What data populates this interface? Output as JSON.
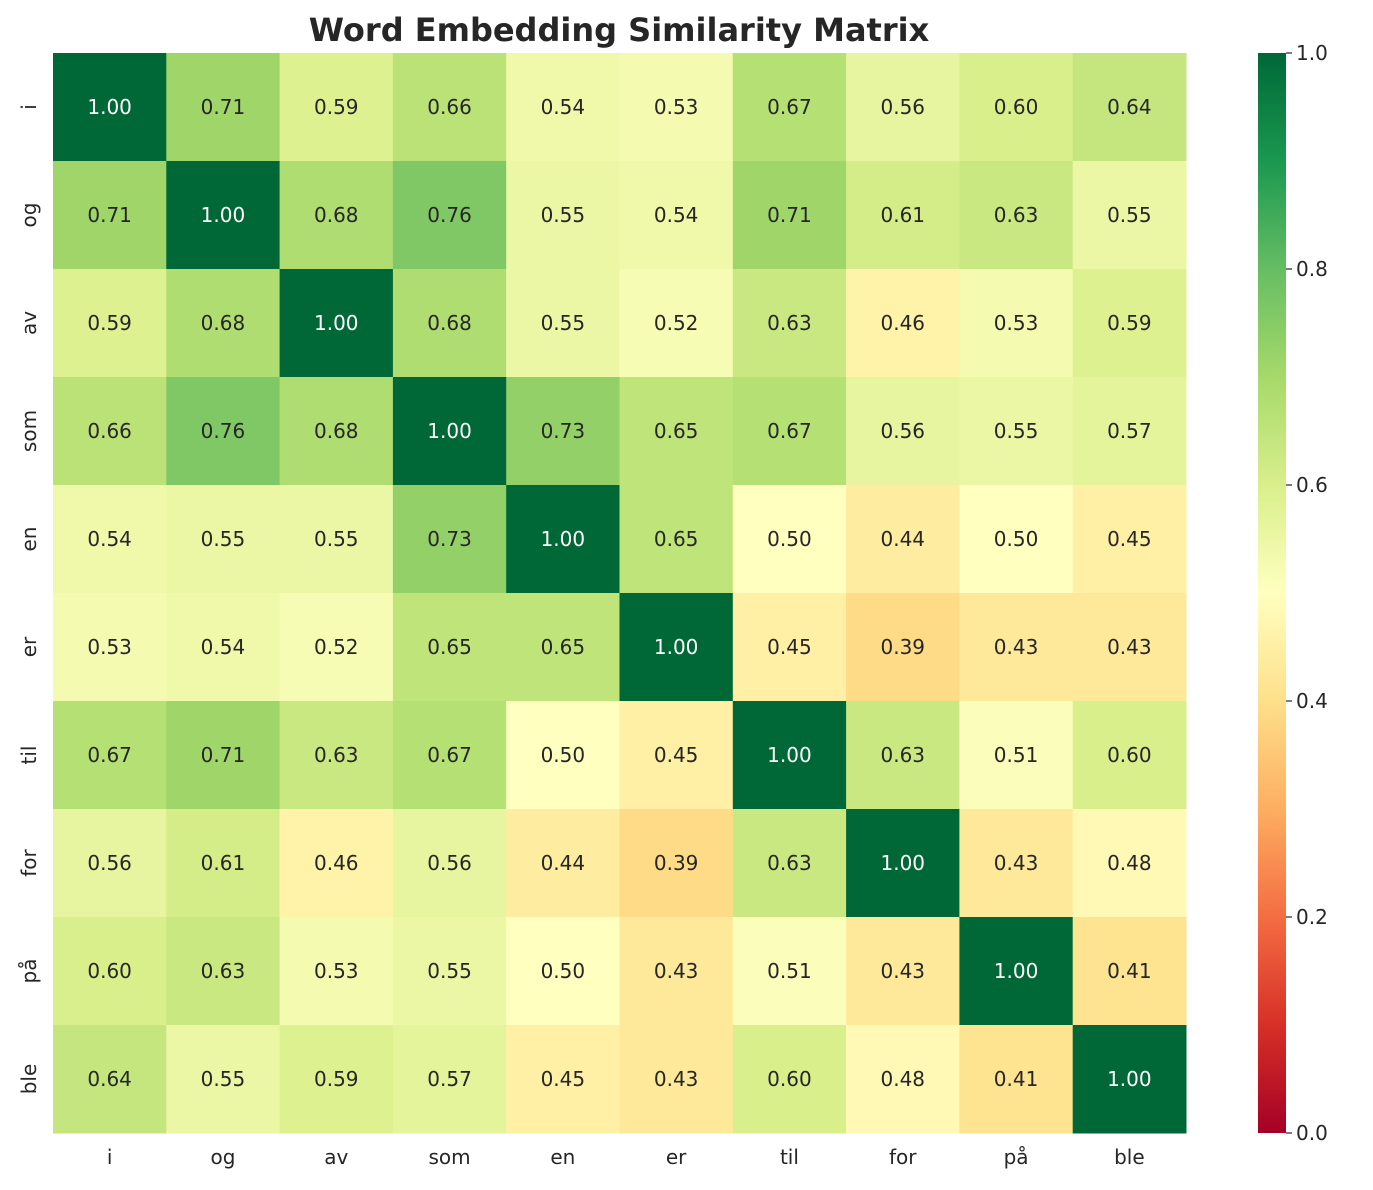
{
  "chart_data": {
    "type": "heatmap",
    "title": "Word Embedding Similarity Matrix",
    "xlabel": "",
    "ylabel": "",
    "x_categories": [
      "i",
      "og",
      "av",
      "som",
      "en",
      "er",
      "til",
      "for",
      "på",
      "ble"
    ],
    "y_categories": [
      "i",
      "og",
      "av",
      "som",
      "en",
      "er",
      "til",
      "for",
      "på",
      "ble"
    ],
    "values": [
      [
        1.0,
        0.71,
        0.59,
        0.66,
        0.54,
        0.53,
        0.67,
        0.56,
        0.6,
        0.64
      ],
      [
        0.71,
        1.0,
        0.68,
        0.76,
        0.55,
        0.54,
        0.71,
        0.61,
        0.63,
        0.55
      ],
      [
        0.59,
        0.68,
        1.0,
        0.68,
        0.55,
        0.52,
        0.63,
        0.46,
        0.53,
        0.59
      ],
      [
        0.66,
        0.76,
        0.68,
        1.0,
        0.73,
        0.65,
        0.67,
        0.56,
        0.55,
        0.57
      ],
      [
        0.54,
        0.55,
        0.55,
        0.73,
        1.0,
        0.65,
        0.5,
        0.44,
        0.5,
        0.45
      ],
      [
        0.53,
        0.54,
        0.52,
        0.65,
        0.65,
        1.0,
        0.45,
        0.39,
        0.43,
        0.43
      ],
      [
        0.67,
        0.71,
        0.63,
        0.67,
        0.5,
        0.45,
        1.0,
        0.63,
        0.51,
        0.6
      ],
      [
        0.56,
        0.61,
        0.46,
        0.56,
        0.44,
        0.39,
        0.63,
        1.0,
        0.43,
        0.48
      ],
      [
        0.6,
        0.63,
        0.53,
        0.55,
        0.5,
        0.43,
        0.51,
        0.43,
        1.0,
        0.41
      ],
      [
        0.64,
        0.55,
        0.59,
        0.57,
        0.45,
        0.43,
        0.6,
        0.48,
        0.41,
        1.0
      ]
    ],
    "value_format": "0.00",
    "colormap": "RdYlGn",
    "vmin": 0.0,
    "vmax": 1.0,
    "colorbar": {
      "ticks": [
        0.0,
        0.2,
        0.4,
        0.6,
        0.8,
        1.0
      ],
      "tick_labels": [
        "0.0",
        "0.2",
        "0.4",
        "0.6",
        "0.8",
        "1.0"
      ]
    },
    "grid": false,
    "legend": "colorbar-right"
  },
  "colors": {
    "text_dark": "#262626",
    "text_light": "#ffffff",
    "colormap_stops": [
      [
        0.0,
        "#a50026"
      ],
      [
        0.1,
        "#d73027"
      ],
      [
        0.2,
        "#f46d43"
      ],
      [
        0.3,
        "#fdae61"
      ],
      [
        0.4,
        "#fee08b"
      ],
      [
        0.5,
        "#ffffbf"
      ],
      [
        0.6,
        "#d9ef8b"
      ],
      [
        0.7,
        "#a6d96a"
      ],
      [
        0.8,
        "#66bd63"
      ],
      [
        0.9,
        "#1a9850"
      ],
      [
        1.0,
        "#006837"
      ]
    ]
  }
}
